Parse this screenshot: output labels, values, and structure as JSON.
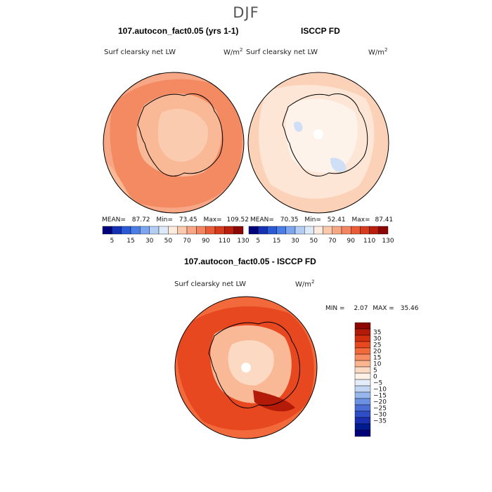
{
  "figure": {
    "title": "DJF"
  },
  "panels": {
    "model": {
      "title": "107.autocon_fact0.05 (yrs 1-1)",
      "variable": "Surf clearsky net LW",
      "units_base": "W/m",
      "units_exp": "2",
      "mean_label": "MEAN=",
      "mean_value": "87.72",
      "min_label": "Min=",
      "min_value": "73.45",
      "max_label": "Max=",
      "max_value": "109.52"
    },
    "obs": {
      "title": "ISCCP FD",
      "variable": "Surf clearsky net LW",
      "units_base": "W/m",
      "units_exp": "2",
      "mean_label": "MEAN=",
      "mean_value": "70.35",
      "min_label": "Min=",
      "min_value": "52.41",
      "max_label": "Max=",
      "max_value": "87.41"
    },
    "diff": {
      "title": "107.autocon_fact0.05 - ISCCP FD",
      "variable": "Surf clearsky net LW",
      "units_base": "W/m",
      "units_exp": "2",
      "min_label": "MIN =",
      "min_value": "2.07",
      "max_label": "MAX =",
      "max_value": "35.46"
    }
  },
  "chart_data": [
    {
      "type": "heatmap",
      "projection": "south polar stereographic",
      "title": "107.autocon_fact0.05 (yrs 1-1)",
      "variable": "Surf clearsky net LW",
      "units": "W/m2",
      "mean": 87.72,
      "min": 73.45,
      "max": 109.52,
      "colorbar": {
        "orientation": "horizontal",
        "tick_labels": [
          "5",
          "15",
          "30",
          "50",
          "70",
          "90",
          "110",
          "130"
        ],
        "colors": [
          "#00007a",
          "#1532b4",
          "#2b5ad6",
          "#4a7de6",
          "#7ea6ef",
          "#b3cdf5",
          "#ddeaf9",
          "#fdebde",
          "#fbc9ab",
          "#f8a785",
          "#f48561",
          "#ea5c36",
          "#d63b1c",
          "#b81f0c",
          "#8c0704"
        ]
      }
    },
    {
      "type": "heatmap",
      "projection": "south polar stereographic",
      "title": "ISCCP FD",
      "variable": "Surf clearsky net LW",
      "units": "W/m2",
      "mean": 70.35,
      "min": 52.41,
      "max": 87.41,
      "colorbar": {
        "orientation": "horizontal",
        "tick_labels": [
          "5",
          "15",
          "30",
          "50",
          "70",
          "90",
          "110",
          "130"
        ],
        "colors": [
          "#00007a",
          "#1532b4",
          "#2b5ad6",
          "#4a7de6",
          "#7ea6ef",
          "#b3cdf5",
          "#ddeaf9",
          "#fdebde",
          "#fbc9ab",
          "#f8a785",
          "#f48561",
          "#ea5c36",
          "#d63b1c",
          "#b81f0c",
          "#8c0704"
        ]
      }
    },
    {
      "type": "heatmap",
      "projection": "south polar stereographic",
      "title": "107.autocon_fact0.05 - ISCCP FD",
      "variable": "Surf clearsky net LW",
      "units": "W/m2",
      "min": 2.07,
      "max": 35.46,
      "colorbar": {
        "orientation": "vertical",
        "tick_labels": [
          "35",
          "30",
          "25",
          "20",
          "15",
          "10",
          "5",
          "0",
          "−5",
          "−10",
          "−15",
          "−20",
          "−25",
          "−30",
          "−35"
        ],
        "colors": [
          "#8c0704",
          "#b31a08",
          "#d12e10",
          "#e8481f",
          "#f26a3c",
          "#f78d62",
          "#fab58f",
          "#fcd9c2",
          "#fdf1e8",
          "#e4ecf8",
          "#c2d6f3",
          "#96b6ec",
          "#6c91e2",
          "#4a6ed6",
          "#2e4ec8",
          "#1a30b0",
          "#001a8f",
          "#000078"
        ]
      }
    }
  ]
}
